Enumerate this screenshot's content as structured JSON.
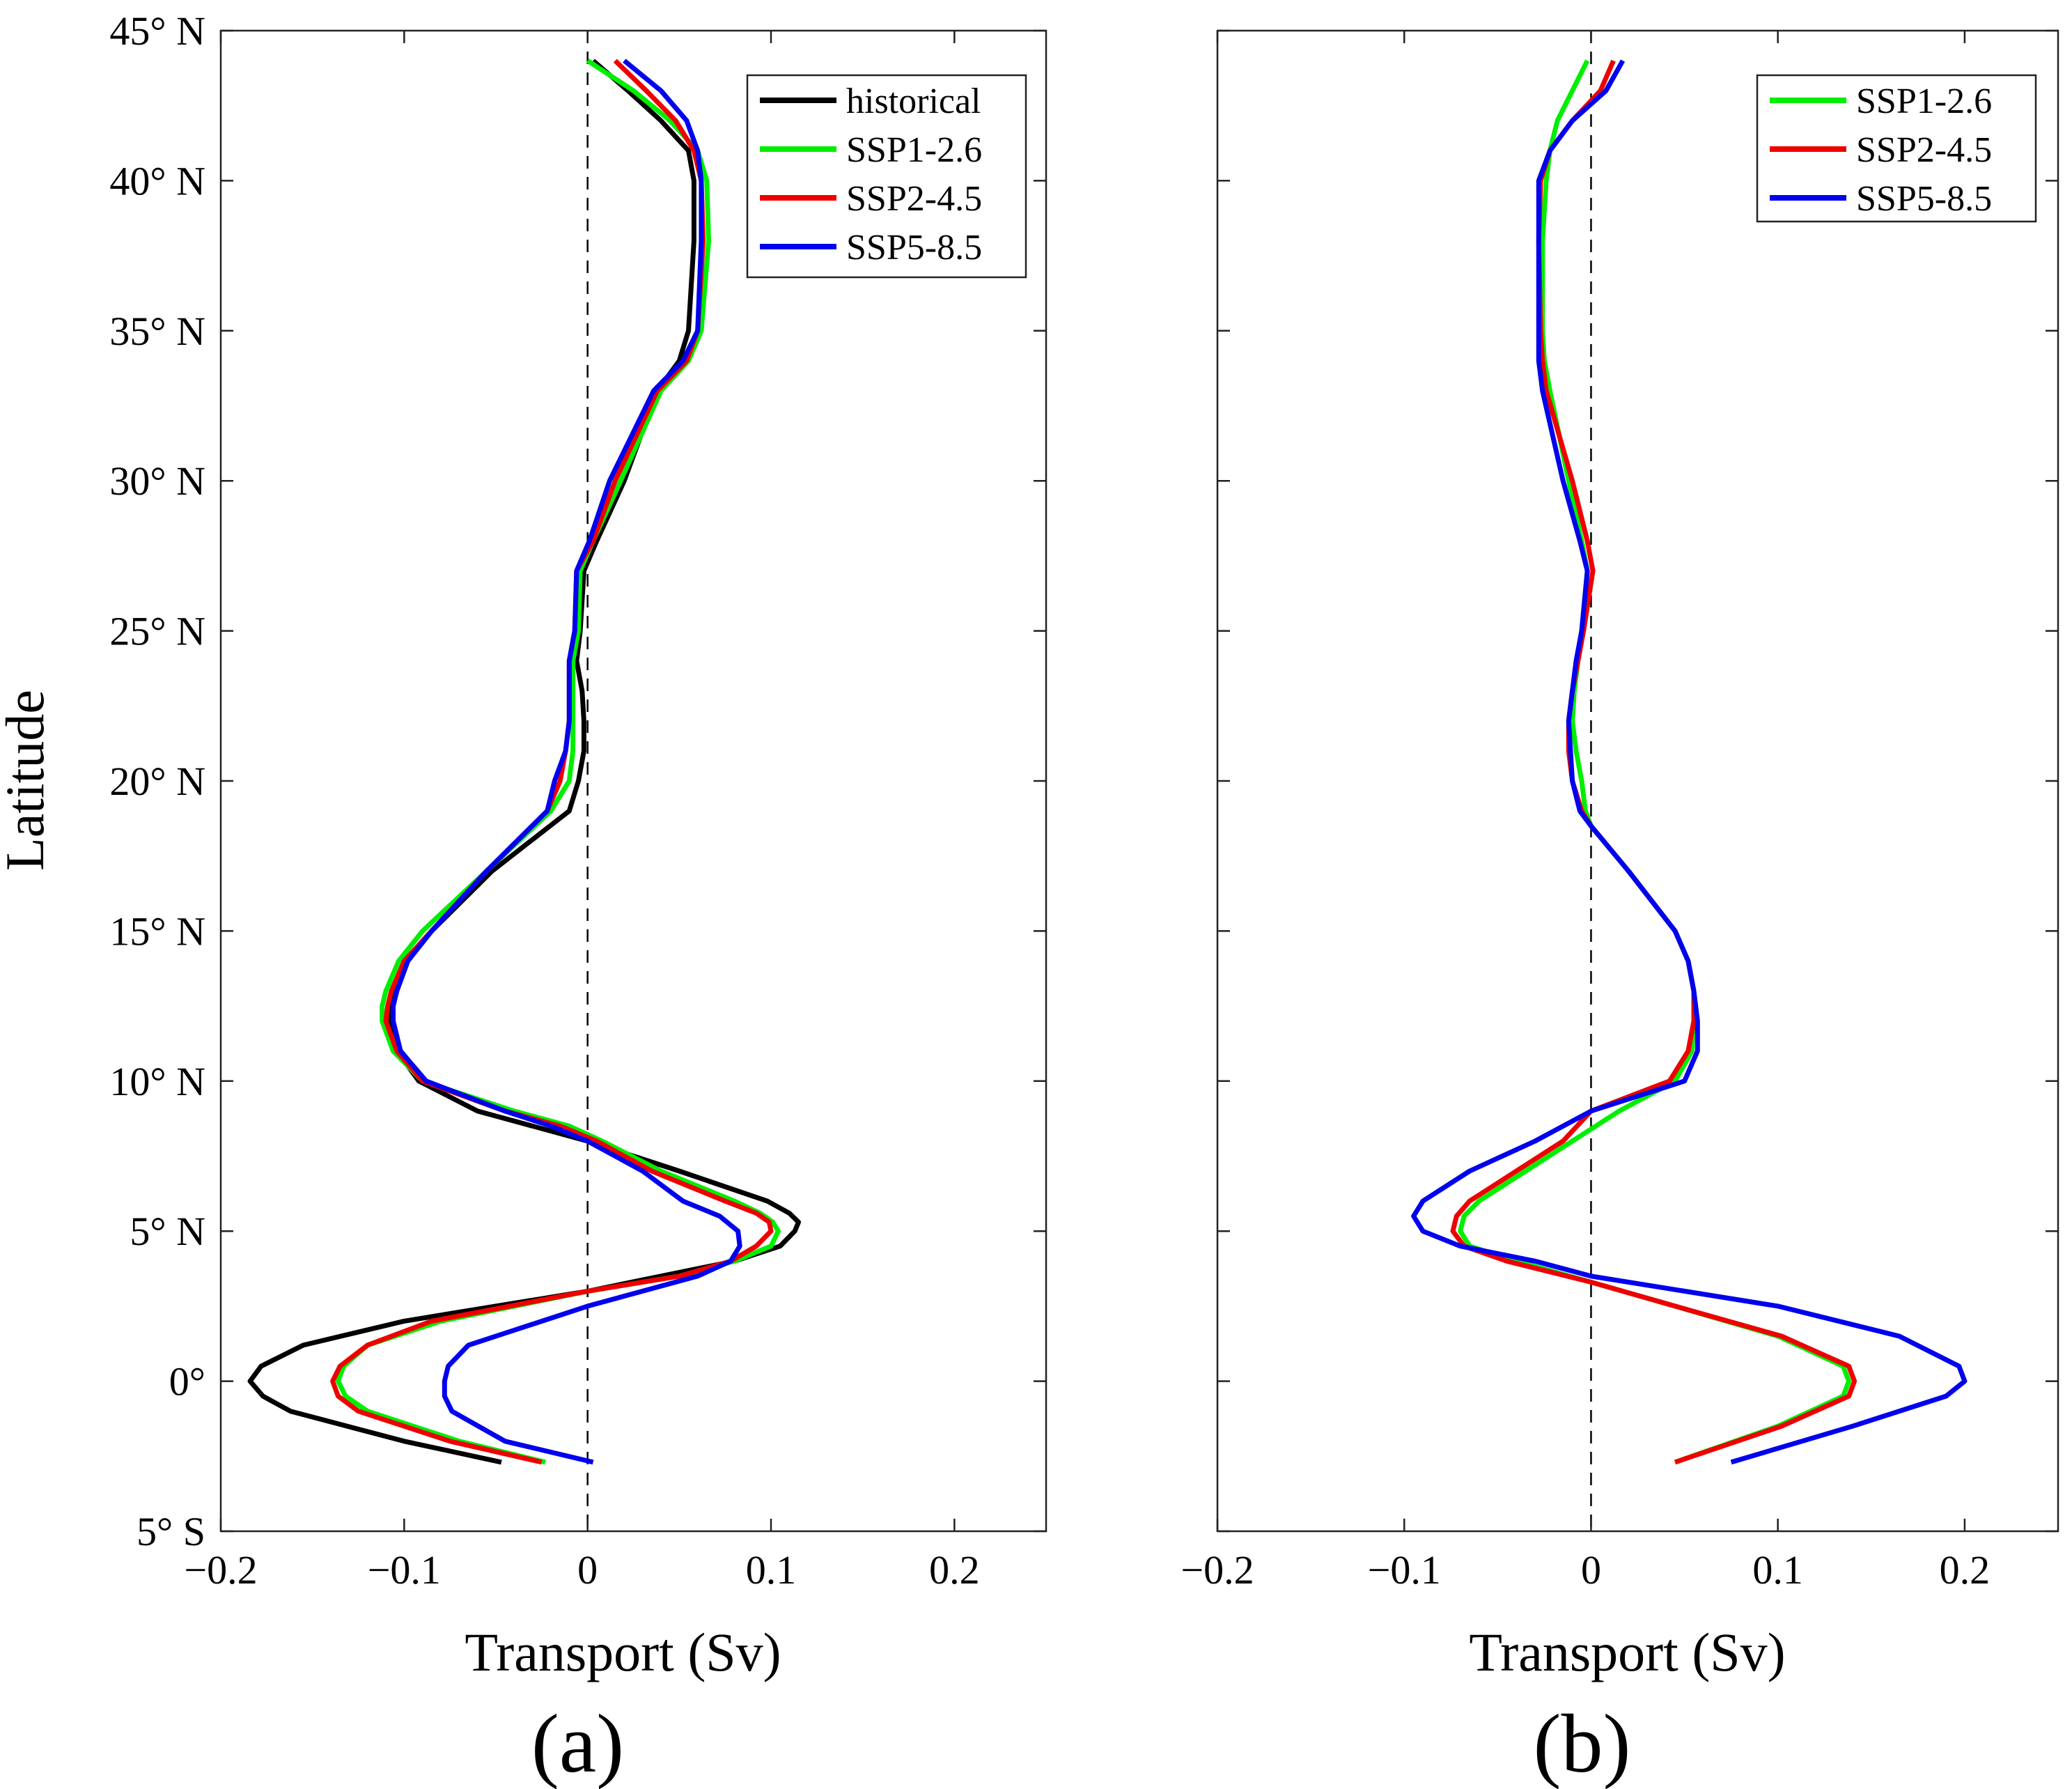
{
  "figure": {
    "ylabel": "Latitude",
    "colors": {
      "historical": "#000000",
      "SSP1-2.6": "#00ee00",
      "SSP2-4.5": "#ee0000",
      "SSP5-8.5": "#0000ee"
    }
  },
  "chart_data": [
    {
      "type": "line",
      "panel_label": "(a)",
      "xlabel": "Transport (Sv)",
      "ylabel": "Latitude",
      "xlim": [
        -0.2,
        0.25
      ],
      "ylim": [
        -5,
        45
      ],
      "xticks": [
        -0.2,
        -0.1,
        0,
        0.1,
        0.2
      ],
      "xtick_labels": [
        "−0.2",
        "−0.1",
        "0",
        "0.1",
        "0.2"
      ],
      "yticks": [
        -5,
        0,
        5,
        10,
        15,
        20,
        25,
        30,
        35,
        40,
        45
      ],
      "ytick_labels": [
        "5° S",
        "0°",
        "5° N",
        "10° N",
        "15° N",
        "20° N",
        "25° N",
        "30° N",
        "35° N",
        "40° N",
        "45° N"
      ],
      "zero_line": "dashed",
      "legend_position": "top-right",
      "series": [
        {
          "name": "historical",
          "color": "#000000",
          "lat": [
            -2.7,
            -2,
            -1,
            -0.5,
            0,
            0.5,
            1.2,
            2,
            3,
            4,
            4.5,
            5,
            5.3,
            5.6,
            6,
            7,
            7.5,
            8,
            8.5,
            9,
            10,
            11,
            12,
            12.5,
            13,
            14,
            15,
            17,
            19,
            20,
            21,
            22,
            23,
            24,
            25,
            27,
            28,
            30,
            33,
            34,
            35,
            38,
            40,
            41,
            42,
            43,
            44
          ],
          "values": [
            -0.047,
            -0.1,
            -0.162,
            -0.177,
            -0.184,
            -0.178,
            -0.155,
            -0.1,
            0.0,
            0.08,
            0.105,
            0.113,
            0.115,
            0.11,
            0.098,
            0.05,
            0.025,
            0.0,
            -0.03,
            -0.06,
            -0.092,
            -0.104,
            -0.108,
            -0.108,
            -0.106,
            -0.1,
            -0.085,
            -0.052,
            -0.01,
            -0.005,
            -0.002,
            -0.002,
            -0.003,
            -0.006,
            -0.004,
            -0.002,
            0.005,
            0.02,
            0.038,
            0.05,
            0.055,
            0.058,
            0.058,
            0.055,
            0.04,
            0.022,
            0.003
          ]
        },
        {
          "name": "SSP1-2.6",
          "color": "#00ee00",
          "lat": [
            -2.7,
            -2,
            -1,
            -0.5,
            0,
            0.5,
            1.2,
            2,
            3,
            3.5,
            4,
            4.5,
            5,
            5.3,
            5.6,
            6,
            7,
            8,
            8.5,
            9,
            10,
            11,
            12,
            12.5,
            13,
            14,
            15,
            17,
            19,
            20,
            21,
            22,
            23,
            24,
            25,
            27,
            28,
            30,
            33,
            34,
            35,
            38,
            40,
            41,
            42,
            43,
            44
          ],
          "values": [
            -0.023,
            -0.07,
            -0.12,
            -0.132,
            -0.136,
            -0.133,
            -0.12,
            -0.08,
            0.0,
            0.05,
            0.08,
            0.1,
            0.104,
            0.101,
            0.094,
            0.08,
            0.04,
            0.008,
            -0.01,
            -0.04,
            -0.09,
            -0.106,
            -0.112,
            -0.112,
            -0.11,
            -0.103,
            -0.09,
            -0.055,
            -0.02,
            -0.01,
            -0.008,
            -0.008,
            -0.008,
            -0.008,
            -0.005,
            -0.004,
            0.003,
            0.018,
            0.04,
            0.055,
            0.062,
            0.066,
            0.065,
            0.06,
            0.045,
            0.025,
            0.0
          ]
        },
        {
          "name": "SSP2-4.5",
          "color": "#ee0000",
          "lat": [
            -2.7,
            -2,
            -1,
            -0.5,
            0,
            0.5,
            1.2,
            2,
            3,
            3.5,
            4,
            4.5,
            5,
            5.3,
            5.6,
            6,
            7,
            8,
            8.5,
            9,
            10,
            11,
            12,
            12.5,
            13,
            14,
            15,
            17,
            19,
            20,
            21,
            22,
            23,
            24,
            25,
            27,
            28,
            30,
            33,
            34,
            35,
            38,
            40,
            41,
            42,
            43,
            44
          ],
          "values": [
            -0.025,
            -0.075,
            -0.125,
            -0.136,
            -0.139,
            -0.135,
            -0.12,
            -0.085,
            0.0,
            0.05,
            0.078,
            0.092,
            0.1,
            0.099,
            0.092,
            0.075,
            0.035,
            0.005,
            -0.015,
            -0.045,
            -0.09,
            -0.104,
            -0.11,
            -0.109,
            -0.107,
            -0.1,
            -0.085,
            -0.055,
            -0.022,
            -0.015,
            -0.012,
            -0.01,
            -0.01,
            -0.01,
            -0.007,
            -0.006,
            0.003,
            0.015,
            0.038,
            0.054,
            0.06,
            0.063,
            0.062,
            0.058,
            0.048,
            0.032,
            0.015
          ]
        },
        {
          "name": "SSP5-8.5",
          "color": "#0000ee",
          "lat": [
            -2.7,
            -2,
            -1,
            -0.5,
            0,
            0.5,
            1.2,
            1.8,
            2.5,
            3.5,
            4,
            4.5,
            5,
            5.5,
            6,
            7,
            8,
            8.5,
            9,
            10,
            11,
            12,
            12.5,
            13,
            14,
            15,
            17,
            19,
            20,
            21,
            22,
            23,
            24,
            25,
            27,
            28,
            30,
            33,
            34,
            35,
            38,
            40,
            41,
            42,
            43,
            44
          ],
          "values": [
            0.003,
            -0.045,
            -0.074,
            -0.078,
            -0.078,
            -0.076,
            -0.065,
            -0.035,
            0.0,
            0.06,
            0.078,
            0.083,
            0.082,
            0.072,
            0.052,
            0.03,
            0.0,
            -0.02,
            -0.045,
            -0.088,
            -0.102,
            -0.106,
            -0.106,
            -0.104,
            -0.098,
            -0.085,
            -0.055,
            -0.022,
            -0.018,
            -0.012,
            -0.01,
            -0.01,
            -0.01,
            -0.007,
            -0.006,
            0.001,
            0.012,
            0.036,
            0.052,
            0.06,
            0.062,
            0.062,
            0.06,
            0.054,
            0.04,
            0.02
          ]
        }
      ]
    },
    {
      "type": "line",
      "panel_label": "(b)",
      "xlabel": "Transport (Sv)",
      "ylabel": "",
      "xlim": [
        -0.2,
        0.25
      ],
      "ylim": [
        -5,
        45
      ],
      "xticks": [
        -0.2,
        -0.1,
        0,
        0.1,
        0.2
      ],
      "xtick_labels": [
        "−0.2",
        "−0.1",
        "0",
        "0.1",
        "0.2"
      ],
      "yticks": [
        -5,
        0,
        5,
        10,
        15,
        20,
        25,
        30,
        35,
        40,
        45
      ],
      "ytick_labels": [],
      "zero_line": "dashed",
      "legend_position": "top-right",
      "series": [
        {
          "name": "SSP1-2.6",
          "color": "#00ee00",
          "lat": [
            -2.7,
            -1.5,
            -0.5,
            0,
            0.5,
            1.5,
            2.5,
            3.3,
            4,
            4.5,
            5,
            5.5,
            6,
            7,
            8,
            9,
            10,
            11,
            12,
            13,
            14,
            15,
            17,
            18.5,
            19,
            20,
            21,
            22,
            23,
            24,
            25,
            27,
            28,
            30,
            33,
            34,
            35,
            38,
            40,
            41,
            42,
            43,
            44
          ],
          "values": [
            0.045,
            0.1,
            0.135,
            0.138,
            0.135,
            0.1,
            0.045,
            0.0,
            -0.04,
            -0.065,
            -0.07,
            -0.068,
            -0.06,
            -0.035,
            -0.01,
            0.015,
            0.045,
            0.054,
            0.055,
            0.055,
            0.052,
            0.045,
            0.02,
            0.0,
            -0.003,
            -0.005,
            -0.008,
            -0.01,
            -0.009,
            -0.007,
            -0.005,
            -0.002,
            -0.005,
            -0.012,
            -0.022,
            -0.025,
            -0.026,
            -0.026,
            -0.024,
            -0.022,
            -0.018,
            -0.01,
            -0.002
          ]
        },
        {
          "name": "SSP2-4.5",
          "color": "#ee0000",
          "lat": [
            -2.7,
            -1.5,
            -0.5,
            0,
            0.5,
            1.5,
            2.5,
            3.3,
            4,
            4.5,
            5,
            5.5,
            6,
            7,
            8,
            9,
            10,
            11,
            12,
            13,
            14,
            15,
            17,
            18.5,
            19,
            20,
            21,
            22,
            23,
            24,
            25,
            27,
            28,
            30,
            33,
            34,
            35,
            38,
            40,
            41,
            42,
            43,
            44
          ],
          "values": [
            0.045,
            0.102,
            0.138,
            0.141,
            0.138,
            0.102,
            0.045,
            0.0,
            -0.045,
            -0.068,
            -0.074,
            -0.072,
            -0.065,
            -0.04,
            -0.015,
            0.0,
            0.042,
            0.052,
            0.055,
            0.055,
            0.052,
            0.045,
            0.02,
            0.0,
            -0.005,
            -0.01,
            -0.012,
            -0.012,
            -0.01,
            -0.007,
            -0.004,
            0.001,
            -0.002,
            -0.01,
            -0.024,
            -0.026,
            -0.027,
            -0.028,
            -0.027,
            -0.022,
            -0.01,
            0.005,
            0.012
          ]
        },
        {
          "name": "SSP5-8.5",
          "color": "#0000ee",
          "lat": [
            -2.7,
            -1.5,
            -0.5,
            0,
            0.5,
            1.5,
            2.5,
            3.5,
            4,
            4.5,
            5,
            5.5,
            6,
            7,
            8,
            9,
            10,
            11,
            12,
            13,
            14,
            15,
            17,
            18.5,
            19,
            20,
            21,
            22,
            23,
            24,
            25,
            27,
            28,
            30,
            33,
            34,
            35,
            38,
            40,
            41,
            42,
            43,
            44
          ],
          "values": [
            0.075,
            0.14,
            0.19,
            0.2,
            0.197,
            0.165,
            0.1,
            0.0,
            -0.03,
            -0.07,
            -0.09,
            -0.095,
            -0.09,
            -0.065,
            -0.03,
            0.0,
            0.05,
            0.057,
            0.057,
            0.055,
            0.052,
            0.045,
            0.02,
            0.0,
            -0.006,
            -0.01,
            -0.011,
            -0.012,
            -0.01,
            -0.008,
            -0.005,
            -0.002,
            -0.006,
            -0.015,
            -0.026,
            -0.028,
            -0.028,
            -0.028,
            -0.028,
            -0.022,
            -0.01,
            0.008,
            0.017
          ]
        }
      ]
    }
  ]
}
